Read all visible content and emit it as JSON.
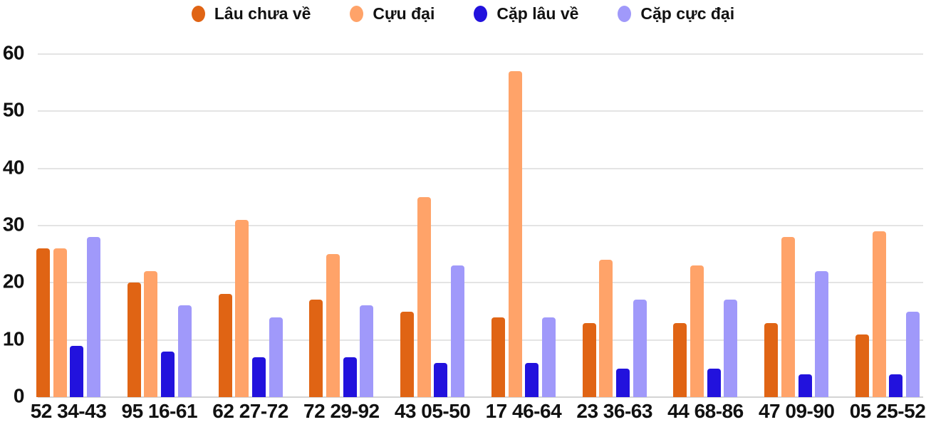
{
  "chart_data": {
    "type": "bar",
    "title": "",
    "xlabel": "",
    "ylabel": "",
    "ylim": [
      0,
      60
    ],
    "yticks": [
      0,
      10,
      20,
      30,
      40,
      50,
      60
    ],
    "grid": true,
    "legend_position": "top",
    "categories": [
      "52 34-43",
      "95 16-61",
      "62 27-72",
      "72 29-92",
      "43 05-50",
      "17 46-64",
      "23 36-63",
      "44 68-86",
      "47 09-90",
      "05 25-52"
    ],
    "series": [
      {
        "name": "Lâu chưa về",
        "color": "#E06414",
        "values": [
          26,
          20,
          18,
          17,
          15,
          14,
          13,
          13,
          13,
          11
        ]
      },
      {
        "name": "Cựu đại",
        "color": "#FFA369",
        "values": [
          26,
          22,
          31,
          25,
          35,
          57,
          24,
          23,
          28,
          29
        ]
      },
      {
        "name": "Cặp lâu về",
        "color": "#2212DD",
        "values": [
          9,
          8,
          7,
          7,
          6,
          6,
          5,
          5,
          4,
          4
        ]
      },
      {
        "name": "Cặp cực đại",
        "color": "#A099FA",
        "values": [
          28,
          16,
          14,
          16,
          23,
          14,
          17,
          17,
          22,
          15
        ]
      }
    ]
  },
  "colors": {
    "gridline": "#E4E4E4",
    "baseline": "#D4D4D4",
    "text": "#111111",
    "background": "#FFFFFF"
  }
}
